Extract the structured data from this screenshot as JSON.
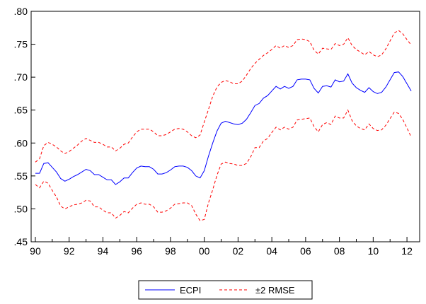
{
  "chart_data": {
    "type": "line",
    "title": "",
    "xlabel": "",
    "ylabel": "",
    "xlim": [
      1989.75,
      2012.75
    ],
    "ylim": [
      0.45,
      0.8
    ],
    "grid": false,
    "legend_position": "bottom",
    "y_ticks": [
      0.45,
      0.5,
      0.55,
      0.6,
      0.65,
      0.7,
      0.75,
      0.8
    ],
    "y_tick_labels": [
      ".45",
      ".50",
      ".55",
      ".60",
      ".65",
      ".70",
      ".75",
      ".80"
    ],
    "x_ticks": [
      1990,
      1992,
      1994,
      1996,
      1998,
      2000,
      2002,
      2004,
      2006,
      2008,
      2010,
      2012
    ],
    "x_tick_labels": [
      "90",
      "92",
      "94",
      "96",
      "98",
      "00",
      "02",
      "04",
      "06",
      "08",
      "10",
      "12"
    ],
    "series": [
      {
        "name": "ECPI",
        "color": "#0000ff",
        "style": "solid",
        "x": [
          1990.0,
          1990.25,
          1990.5,
          1990.75,
          1991.0,
          1991.25,
          1991.5,
          1991.75,
          1992.0,
          1992.25,
          1992.5,
          1992.75,
          1993.0,
          1993.25,
          1993.5,
          1993.75,
          1994.0,
          1994.25,
          1994.5,
          1994.75,
          1995.0,
          1995.25,
          1995.5,
          1995.75,
          1996.0,
          1996.25,
          1996.5,
          1996.75,
          1997.0,
          1997.25,
          1997.5,
          1997.75,
          1998.0,
          1998.25,
          1998.5,
          1998.75,
          1999.0,
          1999.25,
          1999.5,
          1999.75,
          2000.0,
          2000.25,
          2000.5,
          2000.75,
          2001.0,
          2001.25,
          2001.5,
          2001.75,
          2002.0,
          2002.25,
          2002.5,
          2002.75,
          2003.0,
          2003.25,
          2003.5,
          2003.75,
          2004.0,
          2004.25,
          2004.5,
          2004.75,
          2005.0,
          2005.25,
          2005.5,
          2005.75,
          2006.0,
          2006.25,
          2006.5,
          2006.75,
          2007.0,
          2007.25,
          2007.5,
          2007.75,
          2008.0,
          2008.25,
          2008.5,
          2008.75,
          2009.0,
          2009.25,
          2009.5,
          2009.75,
          2010.0,
          2010.25,
          2010.5,
          2010.75,
          2011.0,
          2011.25,
          2011.5,
          2011.75,
          2012.0,
          2012.25
        ],
        "y": [
          0.554,
          0.554,
          0.569,
          0.57,
          0.563,
          0.556,
          0.546,
          0.542,
          0.545,
          0.549,
          0.552,
          0.556,
          0.56,
          0.558,
          0.552,
          0.552,
          0.548,
          0.544,
          0.544,
          0.537,
          0.541,
          0.547,
          0.547,
          0.555,
          0.562,
          0.565,
          0.564,
          0.564,
          0.56,
          0.553,
          0.553,
          0.555,
          0.559,
          0.564,
          0.565,
          0.565,
          0.563,
          0.558,
          0.55,
          0.547,
          0.558,
          0.58,
          0.6,
          0.618,
          0.63,
          0.633,
          0.631,
          0.629,
          0.628,
          0.63,
          0.636,
          0.646,
          0.657,
          0.66,
          0.668,
          0.672,
          0.679,
          0.686,
          0.682,
          0.686,
          0.683,
          0.686,
          0.696,
          0.697,
          0.697,
          0.696,
          0.683,
          0.676,
          0.686,
          0.687,
          0.685,
          0.696,
          0.693,
          0.694,
          0.705,
          0.691,
          0.684,
          0.68,
          0.677,
          0.684,
          0.678,
          0.675,
          0.677,
          0.685,
          0.696,
          0.707,
          0.708,
          0.701,
          0.69,
          0.679
        ]
      },
      {
        "name": "±2 RMSE",
        "color": "#ff0000",
        "style": "dashed",
        "x": [
          1990.0,
          1990.25,
          1990.5,
          1990.75,
          1991.0,
          1991.25,
          1991.5,
          1991.75,
          1992.0,
          1992.25,
          1992.5,
          1992.75,
          1993.0,
          1993.25,
          1993.5,
          1993.75,
          1994.0,
          1994.25,
          1994.5,
          1994.75,
          1995.0,
          1995.25,
          1995.5,
          1995.75,
          1996.0,
          1996.25,
          1996.5,
          1996.75,
          1997.0,
          1997.25,
          1997.5,
          1997.75,
          1998.0,
          1998.25,
          1998.5,
          1998.75,
          1999.0,
          1999.25,
          1999.5,
          1999.75,
          2000.0,
          2000.25,
          2000.5,
          2000.75,
          2001.0,
          2001.25,
          2001.5,
          2001.75,
          2002.0,
          2002.25,
          2002.5,
          2002.75,
          2003.0,
          2003.25,
          2003.5,
          2003.75,
          2004.0,
          2004.25,
          2004.5,
          2004.75,
          2005.0,
          2005.25,
          2005.5,
          2005.75,
          2006.0,
          2006.25,
          2006.5,
          2006.75,
          2007.0,
          2007.25,
          2007.5,
          2007.75,
          2008.0,
          2008.25,
          2008.5,
          2008.75,
          2009.0,
          2009.25,
          2009.5,
          2009.75,
          2010.0,
          2010.25,
          2010.5,
          2010.75,
          2011.0,
          2011.25,
          2011.5,
          2011.75,
          2012.0,
          2012.25
        ],
        "upper": [
          0.571,
          0.576,
          0.596,
          0.601,
          0.598,
          0.594,
          0.588,
          0.584,
          0.587,
          0.592,
          0.597,
          0.603,
          0.607,
          0.604,
          0.601,
          0.601,
          0.598,
          0.594,
          0.594,
          0.588,
          0.592,
          0.598,
          0.6,
          0.609,
          0.617,
          0.621,
          0.621,
          0.621,
          0.617,
          0.611,
          0.611,
          0.613,
          0.617,
          0.621,
          0.622,
          0.621,
          0.617,
          0.611,
          0.608,
          0.612,
          0.632,
          0.651,
          0.671,
          0.685,
          0.692,
          0.695,
          0.693,
          0.69,
          0.69,
          0.694,
          0.703,
          0.713,
          0.721,
          0.727,
          0.733,
          0.737,
          0.742,
          0.748,
          0.744,
          0.748,
          0.745,
          0.748,
          0.757,
          0.758,
          0.757,
          0.754,
          0.741,
          0.735,
          0.744,
          0.743,
          0.742,
          0.751,
          0.748,
          0.75,
          0.76,
          0.748,
          0.742,
          0.738,
          0.734,
          0.739,
          0.734,
          0.731,
          0.734,
          0.743,
          0.755,
          0.767,
          0.771,
          0.766,
          0.757,
          0.749
        ],
        "lower": [
          0.537,
          0.532,
          0.542,
          0.539,
          0.528,
          0.518,
          0.504,
          0.5,
          0.503,
          0.506,
          0.507,
          0.509,
          0.513,
          0.512,
          0.503,
          0.503,
          0.498,
          0.494,
          0.494,
          0.486,
          0.49,
          0.496,
          0.494,
          0.501,
          0.507,
          0.509,
          0.507,
          0.507,
          0.503,
          0.495,
          0.495,
          0.497,
          0.501,
          0.507,
          0.508,
          0.509,
          0.509,
          0.505,
          0.492,
          0.482,
          0.484,
          0.509,
          0.529,
          0.551,
          0.568,
          0.571,
          0.569,
          0.568,
          0.566,
          0.566,
          0.569,
          0.579,
          0.593,
          0.593,
          0.603,
          0.607,
          0.616,
          0.624,
          0.62,
          0.624,
          0.621,
          0.624,
          0.635,
          0.636,
          0.637,
          0.638,
          0.625,
          0.617,
          0.628,
          0.631,
          0.628,
          0.641,
          0.638,
          0.638,
          0.65,
          0.634,
          0.626,
          0.622,
          0.62,
          0.629,
          0.622,
          0.619,
          0.62,
          0.627,
          0.637,
          0.647,
          0.645,
          0.636,
          0.623,
          0.609
        ]
      }
    ],
    "legend": [
      {
        "label": "ECPI",
        "color": "#0000ff",
        "style": "solid"
      },
      {
        "label": "±2 RMSE",
        "color": "#ff0000",
        "style": "dashed"
      }
    ]
  }
}
